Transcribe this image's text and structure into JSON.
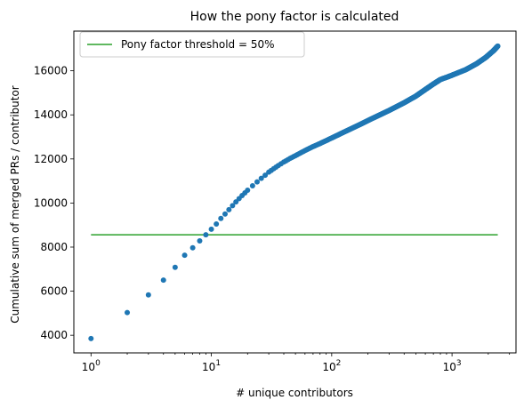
{
  "chart_data": {
    "type": "scatter",
    "title": "How the pony factor is calculated",
    "xlabel": "# unique contributors",
    "ylabel": "Cumulative sum of merged PRs / contributor",
    "xscale": "log",
    "xlim": [
      0.72,
      3400
    ],
    "ylim": [
      3200,
      17800
    ],
    "xticks": [
      {
        "value": 1,
        "base": "10",
        "exp": "0"
      },
      {
        "value": 10,
        "base": "10",
        "exp": "1"
      },
      {
        "value": 100,
        "base": "10",
        "exp": "2"
      },
      {
        "value": 1000,
        "base": "10",
        "exp": "3"
      }
    ],
    "yticks": [
      4000,
      6000,
      8000,
      10000,
      12000,
      14000,
      16000
    ],
    "grid": false,
    "legend_position": "top-left",
    "threshold": {
      "name": "Pony factor threshold = 50%",
      "y": 8560,
      "x_start": 1,
      "x_end": 2400,
      "color": "#2ca02c"
    },
    "series": [
      {
        "color": "#1f77b4",
        "points": [
          [
            1,
            3850
          ],
          [
            2,
            5030
          ],
          [
            3,
            5830
          ],
          [
            4,
            6500
          ],
          [
            5,
            7080
          ],
          [
            6,
            7630
          ],
          [
            7,
            7970
          ],
          [
            8,
            8280
          ],
          [
            9,
            8560
          ],
          [
            10,
            8810
          ],
          [
            11,
            9050
          ],
          [
            12,
            9300
          ],
          [
            13,
            9500
          ],
          [
            14,
            9700
          ],
          [
            15,
            9880
          ],
          [
            16,
            10050
          ],
          [
            17,
            10200
          ],
          [
            18,
            10340
          ],
          [
            19,
            10460
          ],
          [
            20,
            10580
          ],
          [
            22,
            10780
          ],
          [
            24,
            10960
          ],
          [
            26,
            11120
          ],
          [
            28,
            11260
          ],
          [
            30,
            11400
          ],
          [
            33,
            11560
          ],
          [
            36,
            11700
          ],
          [
            40,
            11860
          ],
          [
            45,
            12020
          ],
          [
            50,
            12150
          ],
          [
            60,
            12380
          ],
          [
            70,
            12560
          ],
          [
            80,
            12700
          ],
          [
            100,
            12950
          ],
          [
            130,
            13250
          ],
          [
            170,
            13550
          ],
          [
            220,
            13850
          ],
          [
            300,
            14200
          ],
          [
            400,
            14550
          ],
          [
            500,
            14850
          ],
          [
            600,
            15150
          ],
          [
            700,
            15400
          ],
          [
            800,
            15600
          ],
          [
            1000,
            15800
          ],
          [
            1300,
            16050
          ],
          [
            1600,
            16320
          ],
          [
            1900,
            16600
          ],
          [
            2200,
            16900
          ],
          [
            2400,
            17120
          ]
        ]
      }
    ]
  }
}
